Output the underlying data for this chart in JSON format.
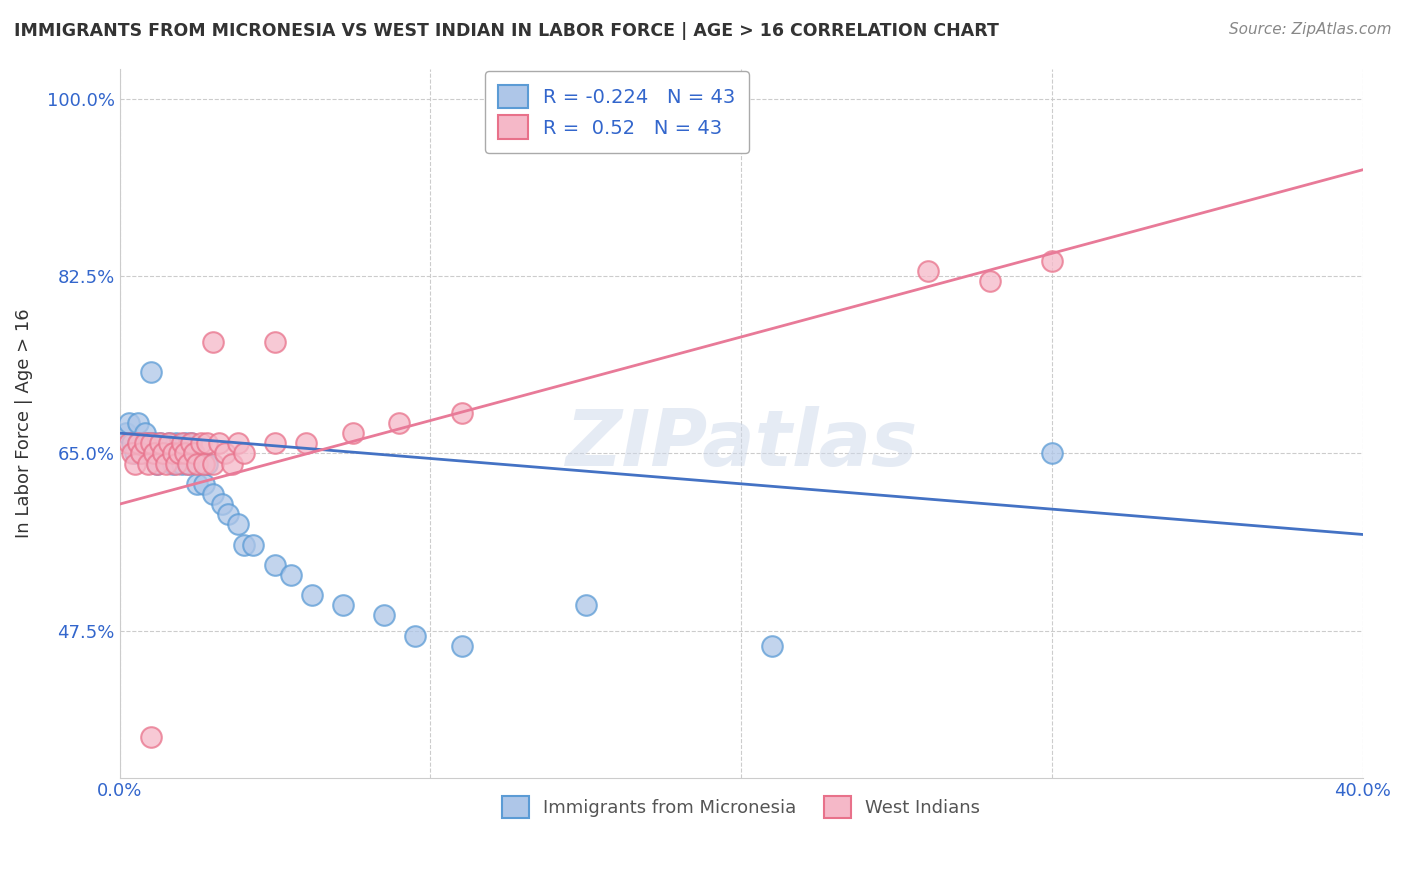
{
  "title": "IMMIGRANTS FROM MICRONESIA VS WEST INDIAN IN LABOR FORCE | AGE > 16 CORRELATION CHART",
  "source": "Source: ZipAtlas.com",
  "ylabel": "In Labor Force | Age > 16",
  "xlim": [
    0.0,
    0.4
  ],
  "ylim": [
    0.33,
    1.03
  ],
  "ytick_vals": [
    0.475,
    0.65,
    0.825,
    1.0
  ],
  "ytick_labels": [
    "47.5%",
    "65.0%",
    "82.5%",
    "100.0%"
  ],
  "xtick_vals": [
    0.0,
    0.1,
    0.2,
    0.3,
    0.4
  ],
  "xtick_labels": [
    "0.0%",
    "",
    "",
    "",
    "40.0%"
  ],
  "micronesia_fill": "#aec6e8",
  "micronesia_edge": "#5b9bd5",
  "west_indian_fill": "#f5b8c8",
  "west_indian_edge": "#e8718a",
  "blue_line_color": "#4472c4",
  "pink_line_color": "#e87a98",
  "R_micronesia": -0.224,
  "N_micronesia": 43,
  "R_west_indian": 0.52,
  "N_west_indian": 43,
  "watermark": "ZIPatlas",
  "bg_color": "#ffffff",
  "grid_color": "#cccccc",
  "legend_text_color": "#3366cc",
  "tick_color": "#3366cc",
  "title_color": "#333333",
  "source_color": "#888888",
  "micro_x": [
    0.002,
    0.003,
    0.004,
    0.005,
    0.006,
    0.006,
    0.007,
    0.008,
    0.009,
    0.01,
    0.01,
    0.011,
    0.012,
    0.013,
    0.014,
    0.015,
    0.016,
    0.017,
    0.018,
    0.019,
    0.02,
    0.021,
    0.022,
    0.023,
    0.025,
    0.027,
    0.028,
    0.03,
    0.033,
    0.035,
    0.038,
    0.04,
    0.043,
    0.05,
    0.055,
    0.062,
    0.072,
    0.085,
    0.095,
    0.11,
    0.15,
    0.21,
    0.3
  ],
  "micro_y": [
    0.67,
    0.68,
    0.66,
    0.65,
    0.68,
    0.66,
    0.65,
    0.67,
    0.66,
    0.65,
    0.73,
    0.66,
    0.64,
    0.66,
    0.65,
    0.65,
    0.66,
    0.64,
    0.66,
    0.65,
    0.64,
    0.66,
    0.64,
    0.66,
    0.62,
    0.62,
    0.64,
    0.61,
    0.6,
    0.59,
    0.58,
    0.56,
    0.56,
    0.54,
    0.53,
    0.51,
    0.5,
    0.49,
    0.47,
    0.46,
    0.5,
    0.46,
    0.65
  ],
  "west_x": [
    0.003,
    0.004,
    0.005,
    0.006,
    0.007,
    0.008,
    0.009,
    0.01,
    0.011,
    0.012,
    0.013,
    0.014,
    0.015,
    0.016,
    0.017,
    0.018,
    0.019,
    0.02,
    0.021,
    0.022,
    0.023,
    0.024,
    0.025,
    0.026,
    0.027,
    0.028,
    0.03,
    0.032,
    0.034,
    0.036,
    0.038,
    0.04,
    0.05,
    0.06,
    0.075,
    0.09,
    0.11,
    0.26,
    0.28,
    0.3,
    0.01,
    0.03,
    0.05
  ],
  "west_y": [
    0.66,
    0.65,
    0.64,
    0.66,
    0.65,
    0.66,
    0.64,
    0.66,
    0.65,
    0.64,
    0.66,
    0.65,
    0.64,
    0.66,
    0.65,
    0.64,
    0.65,
    0.66,
    0.65,
    0.64,
    0.66,
    0.65,
    0.64,
    0.66,
    0.64,
    0.66,
    0.64,
    0.66,
    0.65,
    0.64,
    0.66,
    0.65,
    0.66,
    0.66,
    0.67,
    0.68,
    0.69,
    0.83,
    0.82,
    0.84,
    0.37,
    0.76,
    0.76
  ],
  "blue_line_x0": 0.0,
  "blue_line_y0": 0.67,
  "blue_line_x1": 0.4,
  "blue_line_y1": 0.57,
  "pink_line_x0": 0.0,
  "pink_line_y0": 0.6,
  "pink_line_x1": 0.4,
  "pink_line_y1": 0.93
}
